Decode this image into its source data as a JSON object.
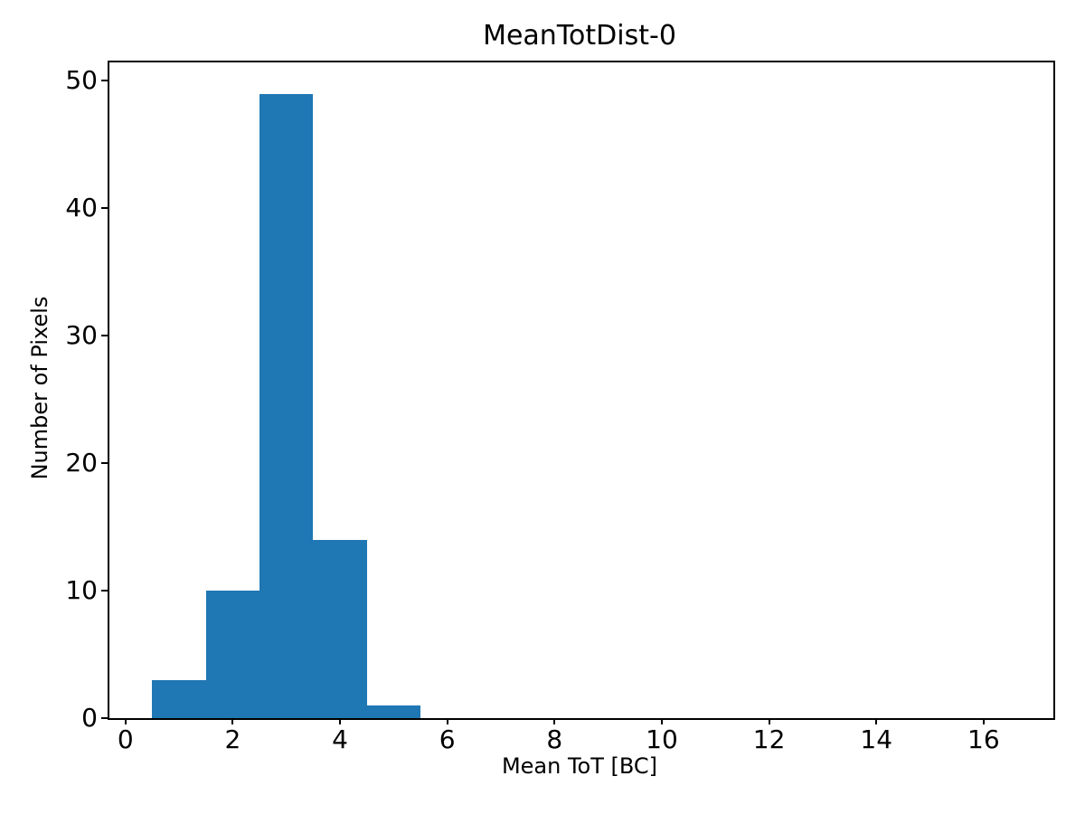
{
  "figure": {
    "title": "MeanTotDist-0"
  },
  "chart_data": {
    "type": "bar",
    "subtype": "histogram",
    "title": "MeanTotDist-0",
    "xlabel": "Mean ToT [BC]",
    "ylabel": "Number of Pixels",
    "bin_edges": [
      0.5,
      1.5,
      2.5,
      3.5,
      4.5,
      5.5
    ],
    "counts": [
      3,
      10,
      49,
      14,
      1
    ],
    "xticks": [
      0,
      2,
      4,
      6,
      8,
      10,
      12,
      14,
      16
    ],
    "yticks": [
      0,
      10,
      20,
      30,
      40,
      50
    ],
    "xlim": [
      -0.3,
      17.3
    ],
    "ylim": [
      0,
      51.45
    ],
    "grid": false,
    "bar_color": "#1f77b4",
    "axis_color": "#000000",
    "text_color": "#000000",
    "background_color": "#ffffff"
  }
}
